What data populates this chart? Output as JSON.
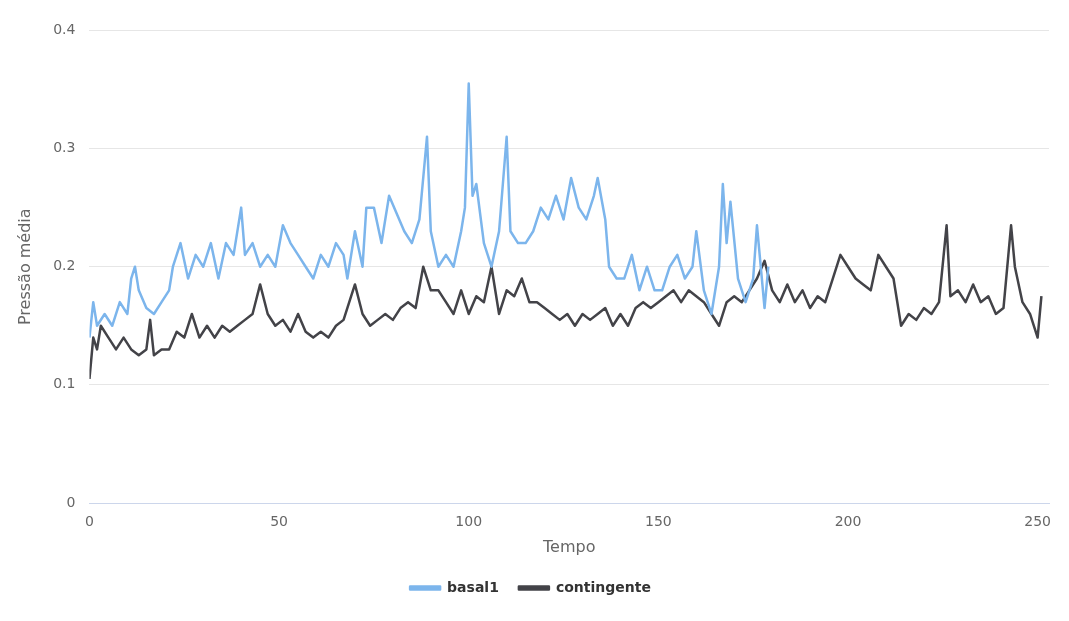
{
  "chart_data": {
    "type": "line",
    "xlabel": "Tempo",
    "ylabel": "Pressão média",
    "xlim": [
      0,
      253
    ],
    "xticks": [
      0,
      50,
      100,
      150,
      200,
      250
    ],
    "ylim": [
      0,
      0.4
    ],
    "yticks": [
      0,
      0.1,
      0.2,
      0.3,
      0.4
    ],
    "grid": "y",
    "legend": "bottom",
    "marker": "none",
    "series": [
      {
        "name": "basal1",
        "color": "#7cb5ec",
        "x": [
          0,
          1,
          2,
          4,
          6,
          8,
          10,
          11,
          12,
          13,
          15,
          17,
          19,
          21,
          22,
          23,
          24,
          26,
          28,
          30,
          32,
          34,
          36,
          38,
          40,
          41,
          43,
          45,
          47,
          49,
          51,
          53,
          55,
          57,
          59,
          61,
          63,
          65,
          67,
          68,
          70,
          72,
          73,
          75,
          77,
          79,
          81,
          83,
          85,
          87,
          89,
          90,
          92,
          94,
          96,
          98,
          99,
          100,
          101,
          102,
          104,
          106,
          108,
          110,
          111,
          113,
          115,
          117,
          119,
          121,
          123,
          125,
          127,
          129,
          131,
          133,
          134,
          136,
          137,
          139,
          141,
          143,
          145,
          147,
          149,
          151,
          153,
          155,
          157,
          159,
          160,
          162,
          164,
          166,
          167,
          168,
          169,
          171,
          173,
          175,
          176,
          178,
          179
        ],
        "values": [
          0.14,
          0.17,
          0.15,
          0.16,
          0.15,
          0.17,
          0.16,
          0.19,
          0.2,
          0.18,
          0.165,
          0.16,
          0.17,
          0.18,
          0.2,
          0.21,
          0.22,
          0.19,
          0.21,
          0.2,
          0.22,
          0.19,
          0.22,
          0.21,
          0.25,
          0.21,
          0.22,
          0.2,
          0.21,
          0.2,
          0.235,
          0.22,
          0.21,
          0.2,
          0.19,
          0.21,
          0.2,
          0.22,
          0.21,
          0.19,
          0.23,
          0.2,
          0.25,
          0.25,
          0.22,
          0.26,
          0.245,
          0.23,
          0.22,
          0.24,
          0.31,
          0.23,
          0.2,
          0.21,
          0.2,
          0.23,
          0.25,
          0.355,
          0.26,
          0.27,
          0.22,
          0.2,
          0.23,
          0.31,
          0.23,
          0.22,
          0.22,
          0.23,
          0.25,
          0.24,
          0.26,
          0.24,
          0.275,
          0.25,
          0.24,
          0.26,
          0.275,
          0.24,
          0.2,
          0.19,
          0.19,
          0.21,
          0.18,
          0.2,
          0.18,
          0.18,
          0.2,
          0.21,
          0.19,
          0.2,
          0.23,
          0.18,
          0.16,
          0.2,
          0.27,
          0.22,
          0.255,
          0.19,
          0.17,
          0.19,
          0.235,
          0.165,
          0.2
        ]
      },
      {
        "name": "contingente",
        "color": "#434348",
        "x": [
          0,
          1,
          2,
          3,
          5,
          7,
          9,
          11,
          13,
          15,
          16,
          17,
          19,
          21,
          23,
          25,
          27,
          29,
          31,
          33,
          35,
          37,
          39,
          41,
          43,
          45,
          47,
          49,
          51,
          53,
          55,
          57,
          59,
          61,
          63,
          65,
          67,
          69,
          70,
          72,
          74,
          76,
          78,
          80,
          82,
          84,
          86,
          88,
          90,
          92,
          94,
          96,
          98,
          100,
          102,
          104,
          106,
          108,
          110,
          112,
          114,
          116,
          118,
          120,
          122,
          124,
          126,
          128,
          130,
          132,
          134,
          136,
          138,
          140,
          142,
          144,
          146,
          148,
          150,
          152,
          154,
          156,
          158,
          160,
          162,
          164,
          166,
          168,
          170,
          172,
          174,
          176,
          178,
          180,
          182,
          184,
          186,
          188,
          190,
          192,
          194,
          196,
          198,
          200,
          202,
          204,
          206,
          208,
          210,
          212,
          214,
          216,
          218,
          220,
          222,
          224,
          226,
          227,
          229,
          231,
          233,
          235,
          237,
          239,
          241,
          243,
          244,
          246,
          248,
          250,
          251
        ],
        "values": [
          0.105,
          0.14,
          0.13,
          0.15,
          0.14,
          0.13,
          0.14,
          0.13,
          0.125,
          0.13,
          0.155,
          0.125,
          0.13,
          0.13,
          0.145,
          0.14,
          0.16,
          0.14,
          0.15,
          0.14,
          0.15,
          0.145,
          0.15,
          0.155,
          0.16,
          0.185,
          0.16,
          0.15,
          0.155,
          0.145,
          0.16,
          0.145,
          0.14,
          0.145,
          0.14,
          0.15,
          0.155,
          0.175,
          0.185,
          0.16,
          0.15,
          0.155,
          0.16,
          0.155,
          0.165,
          0.17,
          0.165,
          0.2,
          0.18,
          0.18,
          0.17,
          0.16,
          0.18,
          0.16,
          0.175,
          0.17,
          0.2,
          0.16,
          0.18,
          0.175,
          0.19,
          0.17,
          0.17,
          0.165,
          0.16,
          0.155,
          0.16,
          0.15,
          0.16,
          0.155,
          0.16,
          0.165,
          0.15,
          0.16,
          0.15,
          0.165,
          0.17,
          0.165,
          0.17,
          0.175,
          0.18,
          0.17,
          0.18,
          0.175,
          0.17,
          0.16,
          0.15,
          0.17,
          0.175,
          0.17,
          0.18,
          0.19,
          0.205,
          0.18,
          0.17,
          0.185,
          0.17,
          0.18,
          0.165,
          0.175,
          0.17,
          0.19,
          0.21,
          0.2,
          0.19,
          0.185,
          0.18,
          0.21,
          0.2,
          0.19,
          0.15,
          0.16,
          0.155,
          0.165,
          0.16,
          0.17,
          0.235,
          0.175,
          0.18,
          0.17,
          0.185,
          0.17,
          0.175,
          0.16,
          0.165,
          0.235,
          0.2,
          0.17,
          0.16,
          0.14,
          0.175
        ]
      }
    ]
  }
}
